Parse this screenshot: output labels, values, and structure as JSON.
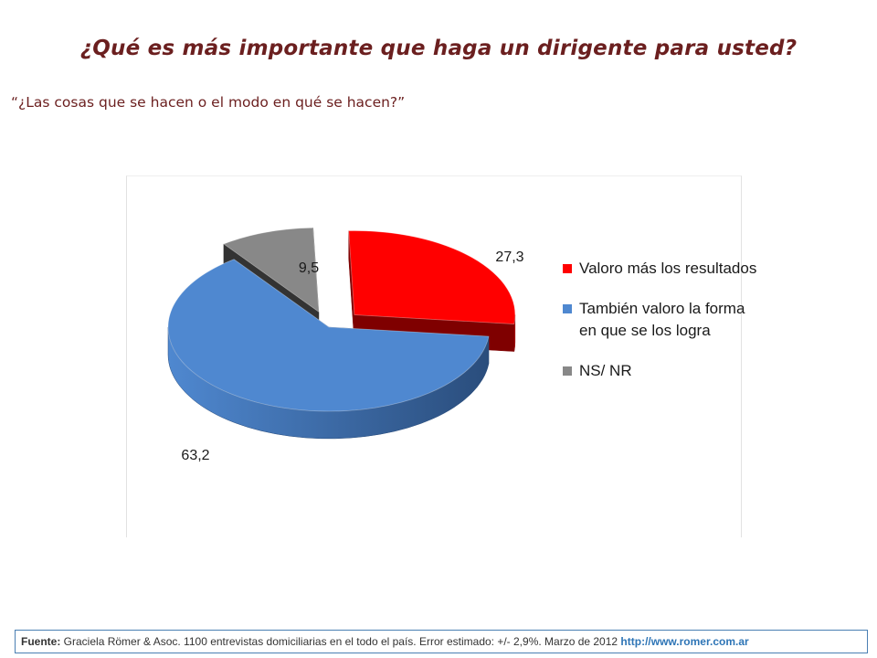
{
  "title": "¿Qué es más importante que haga un dirigente para usted?",
  "subtitle": "“¿Las cosas que se hacen o el modo en qué se hacen?”",
  "chart_data": {
    "type": "pie",
    "style": "3d-exploded",
    "legend_position": "right",
    "slices": [
      {
        "label": "Valoro más los resultados",
        "value": 27.3,
        "data_label": "27,3",
        "color": "#ff0000",
        "dark": "#7f0000"
      },
      {
        "label": "También valoro la forma en que se los logra",
        "value": 63.2,
        "data_label": "63,2",
        "color": "#4f88d0",
        "dark": "#2a4d7c"
      },
      {
        "label": "NS/ NR",
        "value": 9.5,
        "data_label": "9,5",
        "color": "#888888",
        "dark": "#333333"
      }
    ]
  },
  "legend": [
    {
      "label": "Valoro más los resultados",
      "color": "#ff0000"
    },
    {
      "label": "También valoro la forma en que se los logra",
      "color": "#4f88d0"
    },
    {
      "label": "NS/ NR",
      "color": "#888888"
    }
  ],
  "footer": {
    "label": "Fuente:",
    "text": " Graciela Römer & Asoc. 1100 entrevistas domiciliarias en el todo el país. Error estimado: +/- 2,9%. Marzo de 2012 ",
    "link": "http://www.romer.com.ar"
  }
}
